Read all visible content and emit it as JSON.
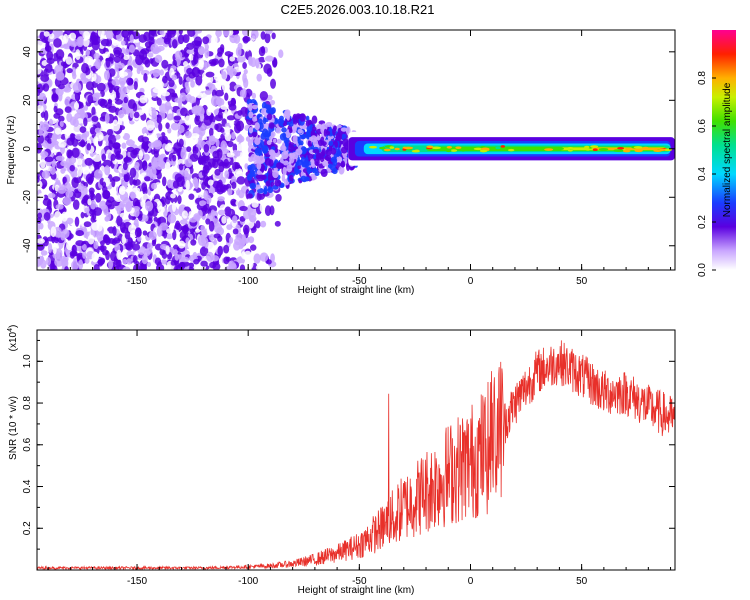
{
  "page": {
    "title": "C2E5.2026.003.10.18.R21"
  },
  "chart_data": [
    {
      "type": "heatmap",
      "title": "C2E5.2026.003.10.18.R21",
      "xlabel": "Height of straight line (km)",
      "ylabel": "Frequency (Hz)",
      "xlim": [
        -195,
        92
      ],
      "ylim": [
        -50,
        49
      ],
      "xticks": [
        -150,
        -100,
        -50,
        0,
        50
      ],
      "yticks": [
        -40,
        -20,
        0,
        20,
        40
      ],
      "colorbar": {
        "label": "Normalized spectral amplitude",
        "range": [
          0,
          1
        ],
        "ticks": [
          "0.0",
          "0.2",
          "0.4",
          "0.6",
          "0.8"
        ]
      },
      "description_of_features": {
        "noise_region_x": [
          -195,
          -90
        ],
        "signal_band_center_hz": 0,
        "strong_signal_x": [
          -55,
          92
        ]
      }
    },
    {
      "type": "line",
      "xlabel": "Height of straight line (km)",
      "ylabel": "SNR (10 * v/v)",
      "y_multiplier_label": "(x10",
      "y_multiplier_exp": "4",
      "y_multiplier_close": ")",
      "xlim": [
        -195,
        92
      ],
      "ylim": [
        0,
        1.15
      ],
      "xticks": [
        -150,
        -100,
        -50,
        0,
        50
      ],
      "yticks": [
        "0.2",
        "0.4",
        "0.6",
        "0.8",
        "1.0"
      ],
      "series_color": "#e8302a",
      "envelope": {
        "x": [
          -195,
          -120,
          -100,
          -90,
          -80,
          -70,
          -60,
          -50,
          -40,
          -30,
          -20,
          -10,
          0,
          10,
          20,
          30,
          40,
          50,
          60,
          70,
          80,
          92
        ],
        "y": [
          0.01,
          0.01,
          0.015,
          0.02,
          0.03,
          0.05,
          0.08,
          0.12,
          0.2,
          0.3,
          0.38,
          0.46,
          0.52,
          0.6,
          0.8,
          0.95,
          1.0,
          0.93,
          0.85,
          0.85,
          0.78,
          0.72
        ]
      }
    }
  ]
}
